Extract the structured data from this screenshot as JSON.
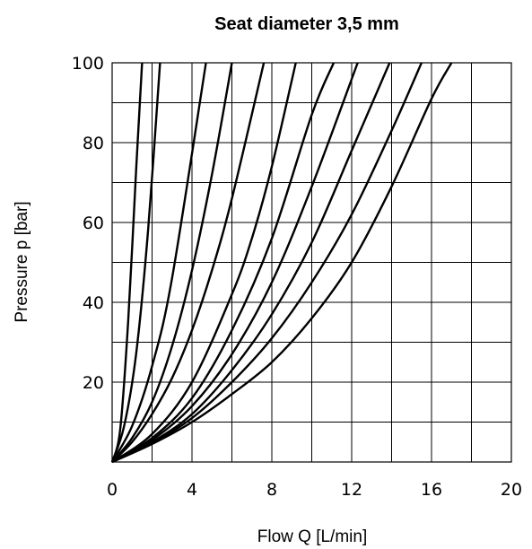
{
  "chart_data": {
    "type": "line",
    "title": "Seat diameter 3,5 mm",
    "xlabel": "Flow Q [L/min]",
    "ylabel": "Pressure p [bar]",
    "xlim": [
      0,
      20
    ],
    "ylim": [
      0,
      100
    ],
    "x_ticks": [
      "0",
      "4",
      "8",
      "12",
      "16",
      "20"
    ],
    "y_ticks": [
      "20",
      "40",
      "60",
      "80",
      "100"
    ],
    "grid": true,
    "legend": "none",
    "series": [
      {
        "x": [
          0,
          0.4,
          0.8,
          1.2,
          1.5
        ],
        "y": [
          0,
          8,
          35,
          73,
          100
        ]
      },
      {
        "x": [
          0,
          0.6,
          1.2,
          1.8,
          2.4
        ],
        "y": [
          0,
          9,
          27,
          58,
          100
        ]
      },
      {
        "x": [
          0,
          1,
          2,
          3,
          4.7
        ],
        "y": [
          0,
          9,
          24,
          46,
          100
        ]
      },
      {
        "x": [
          0,
          1,
          2,
          3,
          4,
          5,
          6
        ],
        "y": [
          0,
          6,
          15,
          29,
          48,
          72,
          100
        ]
      },
      {
        "x": [
          0,
          1,
          2,
          3,
          4,
          5,
          6,
          7.6
        ],
        "y": [
          0,
          5,
          12,
          21,
          33,
          48,
          66,
          100
        ]
      },
      {
        "x": [
          0,
          2,
          4,
          6,
          7,
          8,
          9.2
        ],
        "y": [
          0,
          7,
          20,
          42,
          56,
          74,
          100
        ]
      },
      {
        "x": [
          0,
          2,
          4,
          6,
          8,
          10,
          11.1
        ],
        "y": [
          0,
          6,
          16,
          33,
          56,
          87,
          100
        ]
      },
      {
        "x": [
          0,
          2,
          4,
          6,
          8,
          10,
          12.3
        ],
        "y": [
          0,
          5.5,
          14,
          27,
          45,
          69,
          100
        ]
      },
      {
        "x": [
          0,
          2,
          4,
          6,
          8,
          10,
          12,
          13.9
        ],
        "y": [
          0,
          5,
          12,
          23,
          37,
          55,
          78,
          100
        ]
      },
      {
        "x": [
          0,
          2,
          4,
          6,
          8,
          10,
          12,
          14,
          15.5
        ],
        "y": [
          0,
          4.8,
          11,
          20,
          31,
          45,
          62,
          83,
          100
        ]
      },
      {
        "x": [
          0,
          2,
          4,
          6,
          8,
          10,
          12,
          14,
          16,
          17
        ],
        "y": [
          0,
          4.5,
          10,
          17,
          25,
          36,
          50,
          69,
          91,
          100
        ]
      }
    ]
  }
}
